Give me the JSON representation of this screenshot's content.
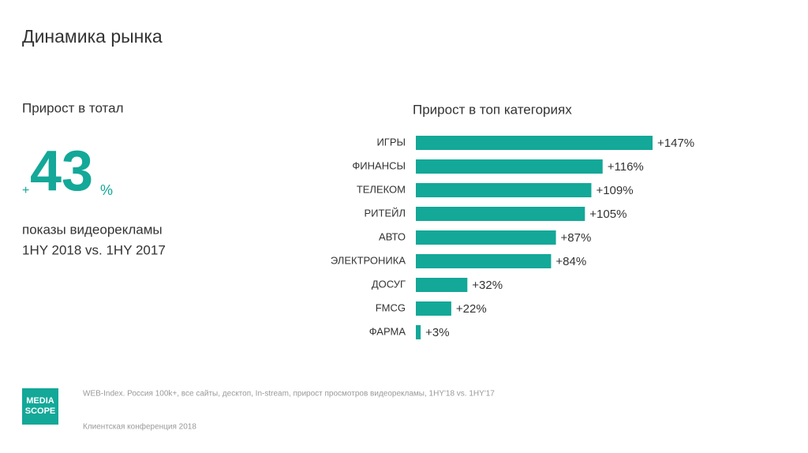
{
  "slide_title": "Динамика рынка",
  "left_panel": {
    "heading": "Прирост в тотал",
    "big_number": {
      "prefix": "+",
      "value": 43,
      "suffix": "%"
    },
    "caption_lines": [
      "показы видеорекламы",
      "1HY 2018 vs. 1HY 2017"
    ]
  },
  "chart_data": {
    "type": "bar",
    "orientation": "horizontal",
    "title": "Прирост в топ категориях",
    "categories": [
      "ИГРЫ",
      "ФИНАНСЫ",
      "ТЕЛЕКОМ",
      "РИТЕЙЛ",
      "АВТО",
      "ЭЛЕКТРОНИКА",
      "ДОСУГ",
      "FMCG",
      "ФАРМА"
    ],
    "values": [
      147,
      116,
      109,
      105,
      87,
      84,
      32,
      22,
      3
    ],
    "value_labels": [
      "+147%",
      "+116%",
      "+109%",
      "+105%",
      "+87%",
      "+84%",
      "+32%",
      "+22%",
      "+3%"
    ],
    "color": "#13a898"
  },
  "footer": {
    "source": "WEB-Index. Россия 100k+, все сайты, десктоп, In-stream, прирост просмотров видеорекламы, 1HY'18 vs. 1HY'17",
    "event": "Клиентская конференция 2018",
    "logo_lines": [
      "MEDIA",
      "SCOPE"
    ]
  }
}
